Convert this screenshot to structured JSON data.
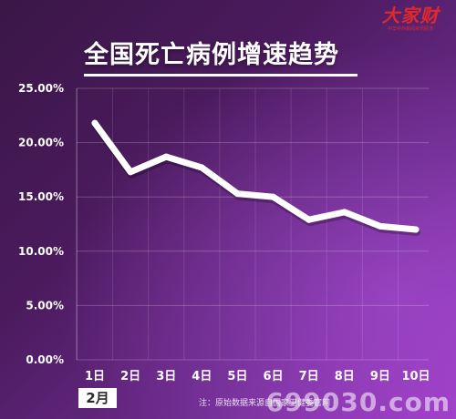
{
  "header": {
    "title": "全国死亡病例增速趋势",
    "logo_text": "大家财",
    "logo_sub": "中华中外新闻资讯经济"
  },
  "period_label": "2月",
  "footnote": "注：原始数据来源自国家卫健委官网",
  "watermark": "699030.com",
  "colors": {
    "background_start": "#3a1747",
    "background_end": "#9a3ac0",
    "line": "#ffffff",
    "logo": "#e0292b"
  },
  "chart_data": {
    "type": "line",
    "title": "全国死亡病例增速趋势",
    "categories": [
      "1日",
      "2日",
      "3日",
      "4日",
      "5日",
      "6日",
      "7日",
      "8日",
      "9日",
      "10日"
    ],
    "series": [
      {
        "values": [
          21.8,
          17.3,
          18.7,
          17.7,
          15.3,
          15.0,
          12.9,
          13.6,
          12.3,
          12.0
        ]
      }
    ],
    "y_ticks": [
      "0.00%",
      "5.00%",
      "10.00%",
      "15.00%",
      "20.00%",
      "25.00%"
    ],
    "ylim": [
      0,
      25
    ],
    "grid": true
  }
}
